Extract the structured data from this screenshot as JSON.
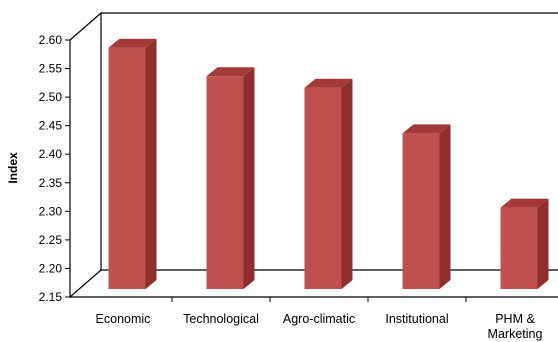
{
  "chart_data": {
    "type": "bar",
    "categories": [
      "Economic",
      "Technological",
      "Agro-climatic",
      "Institutional",
      "PHM & Marketing"
    ],
    "category_lines": [
      [
        "Economic"
      ],
      [
        "Technological"
      ],
      [
        "Agro-climatic"
      ],
      [
        "Institutional"
      ],
      [
        "PHM &",
        "Marketing"
      ]
    ],
    "values": [
      2.59,
      2.54,
      2.52,
      2.44,
      2.31
    ],
    "ylabel": "Index",
    "xlabel": "",
    "title": "",
    "ylim": [
      2.15,
      2.6
    ],
    "yticks": [
      "2.15",
      "2.20",
      "2.25",
      "2.30",
      "2.35",
      "2.40",
      "2.45",
      "2.50",
      "2.55",
      "2.60"
    ],
    "grid": false,
    "legend": "none",
    "style": "3d-column",
    "colors": {
      "bar_front": "#c0504d",
      "bar_side": "#8e2f2c",
      "bar_top": "#a33a37",
      "axis": "#000000"
    }
  }
}
